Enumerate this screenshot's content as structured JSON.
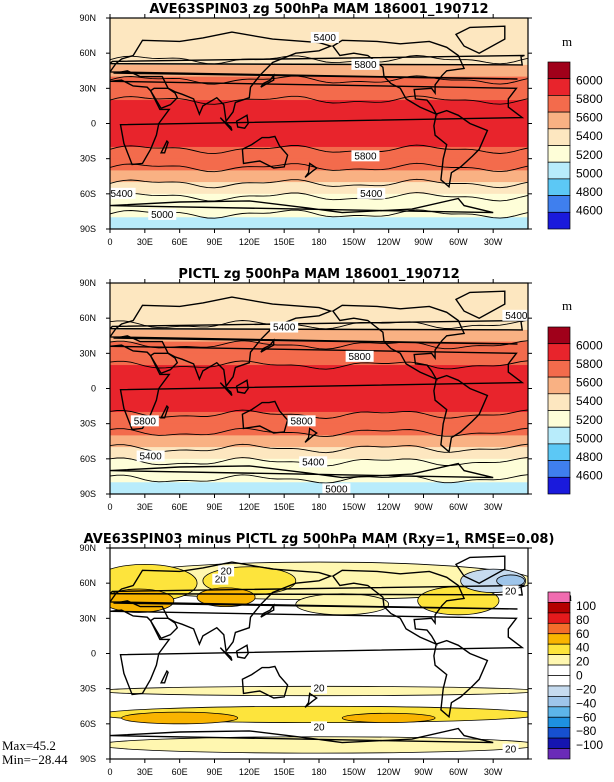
{
  "chart_data": [
    {
      "type": "heatmap",
      "title": "AVE63SPIN03 zg 500hPa MAM 186001_190712",
      "x_ticks": [
        "0",
        "30E",
        "60E",
        "90E",
        "120E",
        "150E",
        "180",
        "150W",
        "120W",
        "90W",
        "60W",
        "30W"
      ],
      "y_ticks": [
        "90N",
        "60N",
        "30N",
        "0",
        "30S",
        "60S",
        "90S"
      ],
      "colorbar": {
        "unit": "m",
        "labels": [
          "6000",
          "5800",
          "5600",
          "5400",
          "5200",
          "5000",
          "4800",
          "4600"
        ],
        "colors": [
          "#a0001a",
          "#e8242c",
          "#f36b4c",
          "#f9b183",
          "#fde7c0",
          "#fefed8",
          "#b8ecfb",
          "#5cc8f5",
          "#3f7fee",
          "#1a1adc"
        ]
      },
      "contour_labels": [
        "5400",
        "5800",
        "5800",
        "5400",
        "5400",
        "5000"
      ],
      "series": [
        {
          "name": "",
          "lat": [
            90,
            80,
            70,
            60,
            50,
            40,
            30,
            20,
            10,
            0,
            -10,
            -20,
            -30,
            -40,
            -50,
            -60,
            -70,
            -80,
            -90
          ],
          "values": [
            5240,
            5260,
            5290,
            5350,
            5440,
            5560,
            5700,
            5800,
            5840,
            5850,
            5850,
            5820,
            5720,
            5560,
            5420,
            5250,
            5050,
            4980,
            4960
          ]
        }
      ]
    },
    {
      "type": "heatmap",
      "title": "PICTL zg 500hPa MAM 186001_190712",
      "x_ticks": [
        "0",
        "30E",
        "60E",
        "90E",
        "120E",
        "150E",
        "180",
        "150W",
        "120W",
        "90W",
        "60W",
        "30W"
      ],
      "y_ticks": [
        "90N",
        "60N",
        "30N",
        "0",
        "30S",
        "60S",
        "90S"
      ],
      "colorbar": {
        "unit": "m",
        "labels": [
          "6000",
          "5800",
          "5600",
          "5400",
          "5200",
          "5000",
          "4800",
          "4600"
        ],
        "colors": [
          "#a0001a",
          "#e8242c",
          "#f36b4c",
          "#f9b183",
          "#fde7c0",
          "#fefed8",
          "#b8ecfb",
          "#5cc8f5",
          "#3f7fee",
          "#1a1adc"
        ]
      },
      "contour_labels": [
        "5400",
        "5400",
        "5800",
        "5800",
        "5800",
        "5400",
        "5400",
        "5000"
      ],
      "series": [
        {
          "name": "",
          "lat": [
            90,
            80,
            70,
            60,
            50,
            40,
            30,
            20,
            10,
            0,
            -10,
            -20,
            -30,
            -40,
            -50,
            -60,
            -70,
            -80,
            -90
          ],
          "values": [
            5240,
            5260,
            5290,
            5350,
            5440,
            5560,
            5700,
            5800,
            5840,
            5850,
            5850,
            5820,
            5720,
            5560,
            5420,
            5250,
            5050,
            4980,
            4960
          ]
        }
      ]
    },
    {
      "type": "heatmap",
      "title": "AVE63SPIN03 minus PICTL zg 500hPa MAM (Rxy=1, RMSE=0.08)",
      "x_ticks": [
        "0",
        "30E",
        "60E",
        "90E",
        "120E",
        "150E",
        "180",
        "150W",
        "120W",
        "90W",
        "60W",
        "30W"
      ],
      "y_ticks": [
        "90N",
        "60N",
        "30N",
        "0",
        "30S",
        "60S",
        "90S"
      ],
      "colorbar": {
        "unit": "m",
        "labels": [
          "100",
          "80",
          "60",
          "40",
          "20",
          "0",
          "−20",
          "−40",
          "−60",
          "−80",
          "−100"
        ],
        "colors": [
          "#f06cb0",
          "#b40000",
          "#e41a1c",
          "#f46d2b",
          "#f9b400",
          "#fde43c",
          "#fff7b0",
          "#ffffff",
          "#ffffff",
          "#c6dbef",
          "#9ec5ea",
          "#5db5e9",
          "#1e90e0",
          "#1650d0",
          "#1515b0",
          "#6a2bb8"
        ]
      },
      "contour_labels": [
        "20",
        "20",
        "20",
        "20",
        "20",
        "20"
      ],
      "stats": {
        "max": "Max=45.2",
        "min": "Min=−28.44"
      }
    }
  ]
}
